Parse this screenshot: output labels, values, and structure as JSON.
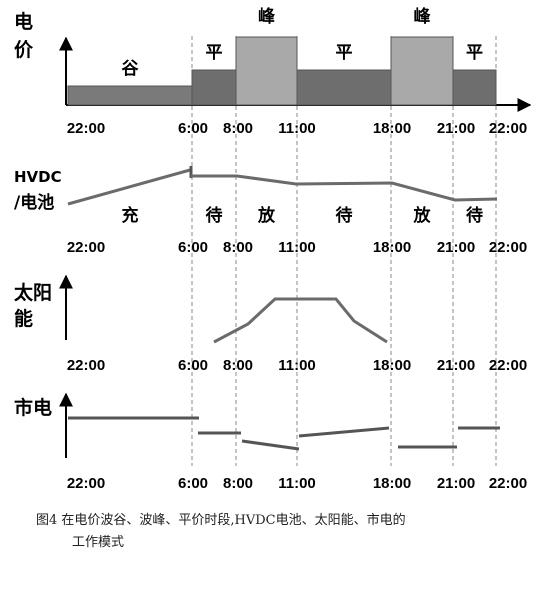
{
  "time_ticks": [
    "22:00",
    "6:00",
    "8:00",
    "11:00",
    "18:00",
    "21:00",
    "22:00"
  ],
  "panel1": {
    "ylabel": [
      "电",
      "价"
    ],
    "periods": [
      {
        "label": "谷",
        "start": "22:00",
        "end": "6:00",
        "level": 1,
        "color": "#7a7a7a"
      },
      {
        "label": "平",
        "start": "6:00",
        "end": "8:00",
        "level": 2,
        "color": "#6e6e6e"
      },
      {
        "label": "峰",
        "start": "8:00",
        "end": "11:00",
        "level": 3,
        "color": "#a9a9a9"
      },
      {
        "label": "平",
        "start": "11:00",
        "end": "18:00",
        "level": 2,
        "color": "#6e6e6e"
      },
      {
        "label": "峰",
        "start": "18:00",
        "end": "21:00",
        "level": 3,
        "color": "#a9a9a9"
      },
      {
        "label": "平",
        "start": "21:00",
        "end": "22:00",
        "level": 2,
        "color": "#6e6e6e"
      }
    ]
  },
  "panel2": {
    "ylabel": [
      "HVDC",
      "/电池"
    ],
    "states": [
      {
        "label": "充",
        "start": "22:00",
        "end": "6:00"
      },
      {
        "label": "待",
        "start": "6:00",
        "end": "8:00"
      },
      {
        "label": "放",
        "start": "8:00",
        "end": "11:00"
      },
      {
        "label": "待",
        "start": "11:00",
        "end": "18:00"
      },
      {
        "label": "放",
        "start": "18:00",
        "end": "21:00"
      },
      {
        "label": "待",
        "start": "21:00",
        "end": "22:00"
      }
    ]
  },
  "panel3": {
    "ylabel": [
      "太阳",
      "能"
    ]
  },
  "panel4": {
    "ylabel": [
      "市电"
    ]
  },
  "caption": {
    "line1": "图4  在电价波谷、波峰、平价时段,HVDC电池、太阳能、市电的",
    "line2": "工作模式"
  },
  "colors": {
    "line": "#6b6b6b",
    "dash": "#8a8a8a",
    "peak": "#a9a9a9",
    "flat": "#6e6e6e",
    "valley": "#7a7a7a"
  }
}
